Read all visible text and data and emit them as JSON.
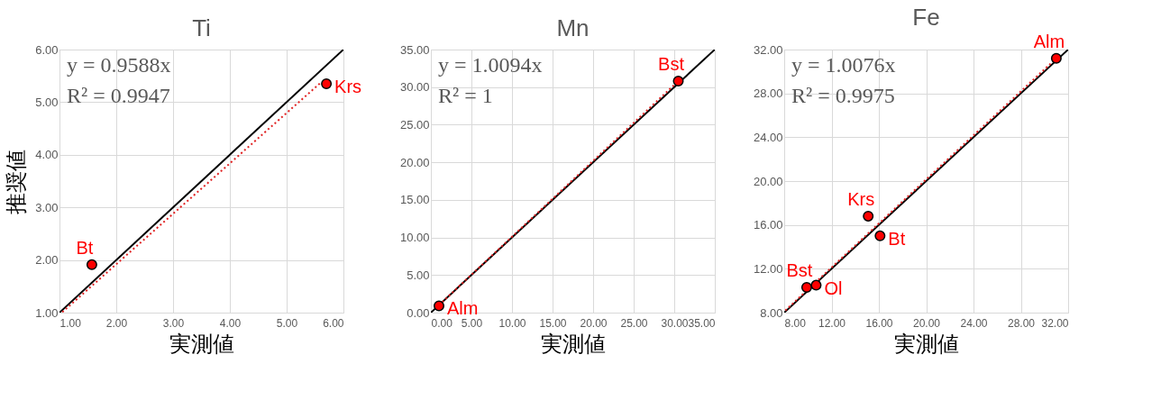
{
  "chart_data": [
    {
      "type": "scatter",
      "title": "Ti",
      "xlabel": "実測値",
      "ylabel": "推奨値",
      "grid": true,
      "marker": "circle",
      "xlim": [
        1,
        6
      ],
      "ylim": [
        1,
        6
      ],
      "xticks": [
        {
          "value": 1,
          "label": "1.00"
        },
        {
          "value": 2,
          "label": "2.00"
        },
        {
          "value": 3,
          "label": "3.00"
        },
        {
          "value": 4,
          "label": "4.00"
        },
        {
          "value": 5,
          "label": "5.00"
        },
        {
          "value": 6,
          "label": "6.00"
        }
      ],
      "yticks": [
        {
          "value": 1,
          "label": "1.00"
        },
        {
          "value": 2,
          "label": "2.00"
        },
        {
          "value": 3,
          "label": "3.00"
        },
        {
          "value": 4,
          "label": "4.00"
        },
        {
          "value": 5,
          "label": "5.00"
        },
        {
          "value": 6,
          "label": "6.00"
        }
      ],
      "series": [
        {
          "type": "line",
          "color": "#000000",
          "line_style": "solid",
          "marker": "none",
          "x": [
            1,
            6
          ],
          "values": [
            1,
            6
          ]
        },
        {
          "type": "line",
          "color": "#e02020",
          "line_style": "dotted",
          "marker": "none",
          "x": [
            1.05,
            5.6
          ],
          "values": [
            1.01,
            5.37
          ]
        },
        {
          "color": "#ff0000",
          "x": [
            1.57,
            5.7
          ],
          "values": [
            1.91,
            5.35
          ]
        }
      ],
      "annotations": [
        "y = 0.9588x",
        "R² = 0.9947",
        {
          "text": "Bt",
          "x": 1.57,
          "y": 1.91
        },
        {
          "text": "Krs",
          "x": 5.7,
          "y": 5.35
        }
      ]
    },
    {
      "type": "scatter",
      "title": "Mn",
      "xlabel": "実測値",
      "grid": true,
      "marker": "circle",
      "xlim": [
        0,
        35
      ],
      "ylim": [
        0,
        35
      ],
      "xticks": [
        {
          "value": 0,
          "label": "0.00"
        },
        {
          "value": 5,
          "label": "5.00"
        },
        {
          "value": 10,
          "label": "10.00"
        },
        {
          "value": 15,
          "label": "15.00"
        },
        {
          "value": 20,
          "label": "20.00"
        },
        {
          "value": 25,
          "label": "25.00"
        },
        {
          "value": 30,
          "label": "30.00"
        },
        {
          "value": 35,
          "label": "35.00"
        }
      ],
      "yticks": [
        {
          "value": 0,
          "label": "0.00"
        },
        {
          "value": 5,
          "label": "5.00"
        },
        {
          "value": 10,
          "label": "10.00"
        },
        {
          "value": 15,
          "label": "15.00"
        },
        {
          "value": 20,
          "label": "20.00"
        },
        {
          "value": 25,
          "label": "25.00"
        },
        {
          "value": 30,
          "label": "30.00"
        },
        {
          "value": 35,
          "label": "35.00"
        }
      ],
      "series": [
        {
          "type": "line",
          "color": "#000000",
          "line_style": "solid",
          "marker": "none",
          "x": [
            0,
            35
          ],
          "values": [
            0,
            35
          ]
        },
        {
          "type": "line",
          "color": "#e02020",
          "line_style": "dotted",
          "marker": "none",
          "x": [
            1.0,
            30.5
          ],
          "values": [
            1.0,
            30.8
          ]
        },
        {
          "color": "#ff0000",
          "x": [
            1.0,
            30.5
          ],
          "values": [
            0.9,
            30.8
          ]
        }
      ],
      "annotations": [
        "y = 1.0094x",
        "R² = 1",
        {
          "text": "Bst",
          "x": 30.5,
          "y": 30.8
        },
        {
          "text": "Alm",
          "x": 1.0,
          "y": 0.9
        }
      ]
    },
    {
      "type": "scatter",
      "title": "Fe",
      "xlabel": "実測値",
      "grid": true,
      "marker": "circle",
      "xlim": [
        8,
        32
      ],
      "ylim": [
        8,
        32
      ],
      "xticks": [
        {
          "value": 8,
          "label": "8.00"
        },
        {
          "value": 12,
          "label": "12.00"
        },
        {
          "value": 16,
          "label": "16.00"
        },
        {
          "value": 20,
          "label": "20.00"
        },
        {
          "value": 24,
          "label": "24.00"
        },
        {
          "value": 28,
          "label": "28.00"
        },
        {
          "value": 32,
          "label": "32.00"
        }
      ],
      "yticks": [
        {
          "value": 8,
          "label": "8.00"
        },
        {
          "value": 12,
          "label": "12.00"
        },
        {
          "value": 16,
          "label": "16.00"
        },
        {
          "value": 20,
          "label": "20.00"
        },
        {
          "value": 24,
          "label": "24.00"
        },
        {
          "value": 28,
          "label": "28.00"
        },
        {
          "value": 32,
          "label": "32.00"
        }
      ],
      "series": [
        {
          "type": "line",
          "color": "#000000",
          "line_style": "solid",
          "marker": "none",
          "x": [
            8,
            32
          ],
          "values": [
            8,
            32
          ]
        },
        {
          "type": "line",
          "color": "#e02020",
          "line_style": "dotted",
          "marker": "none",
          "x": [
            8.1,
            30.8
          ],
          "values": [
            8.2,
            31.0
          ]
        },
        {
          "color": "#ff0000",
          "x": [
            9.9,
            10.7,
            15.1,
            16.1,
            31.0
          ],
          "values": [
            10.3,
            10.5,
            16.8,
            15.0,
            31.2
          ]
        }
      ],
      "annotations": [
        "y = 1.0076x",
        "R² = 0.9975",
        {
          "text": "Alm",
          "x": 31.0,
          "y": 31.2
        },
        {
          "text": "Krs",
          "x": 15.1,
          "y": 16.8
        },
        {
          "text": "Bt",
          "x": 16.1,
          "y": 15.0
        },
        {
          "text": "Bst",
          "x": 9.9,
          "y": 10.3
        },
        {
          "text": "Ol",
          "x": 10.7,
          "y": 10.5
        }
      ]
    }
  ]
}
